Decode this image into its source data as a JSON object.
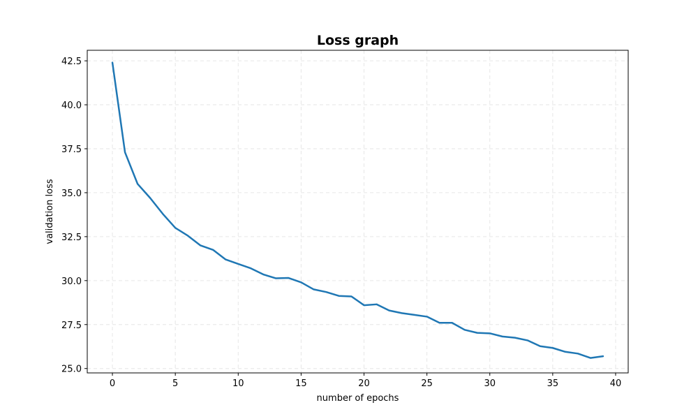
{
  "chart_data": {
    "type": "line",
    "title": "Loss graph",
    "xlabel": "number of epochs",
    "ylabel": "validation loss",
    "xlim": [
      -2,
      41
    ],
    "ylim": [
      24.75,
      43.1
    ],
    "xticks": [
      0,
      5,
      10,
      15,
      20,
      25,
      30,
      35,
      40
    ],
    "yticks": [
      25.0,
      27.5,
      30.0,
      32.5,
      35.0,
      37.5,
      40.0,
      42.5
    ],
    "xtick_labels": [
      "0",
      "5",
      "10",
      "15",
      "20",
      "25",
      "30",
      "35",
      "40"
    ],
    "ytick_labels": [
      "25.0",
      "27.5",
      "30.0",
      "32.5",
      "35.0",
      "37.5",
      "40.0",
      "42.5"
    ],
    "grid": true,
    "series": [
      {
        "color": "#1f77b4",
        "x": [
          0,
          1,
          2,
          3,
          4,
          5,
          6,
          7,
          8,
          9,
          10,
          11,
          12,
          13,
          14,
          15,
          16,
          17,
          18,
          19,
          20,
          21,
          22,
          23,
          24,
          25,
          26,
          27,
          28,
          29,
          30,
          31,
          32,
          33,
          34,
          35,
          36,
          37,
          38,
          39
        ],
        "values": [
          42.4,
          37.3,
          35.5,
          34.7,
          33.8,
          33.0,
          32.55,
          32.0,
          31.75,
          31.2,
          30.95,
          30.7,
          30.35,
          30.13,
          30.15,
          29.9,
          29.5,
          29.35,
          29.13,
          29.1,
          28.6,
          28.65,
          28.3,
          28.15,
          28.05,
          27.95,
          27.6,
          27.6,
          27.2,
          27.03,
          27.0,
          26.82,
          26.75,
          26.6,
          26.27,
          26.17,
          25.95,
          25.85,
          25.6,
          25.7
        ]
      }
    ]
  }
}
